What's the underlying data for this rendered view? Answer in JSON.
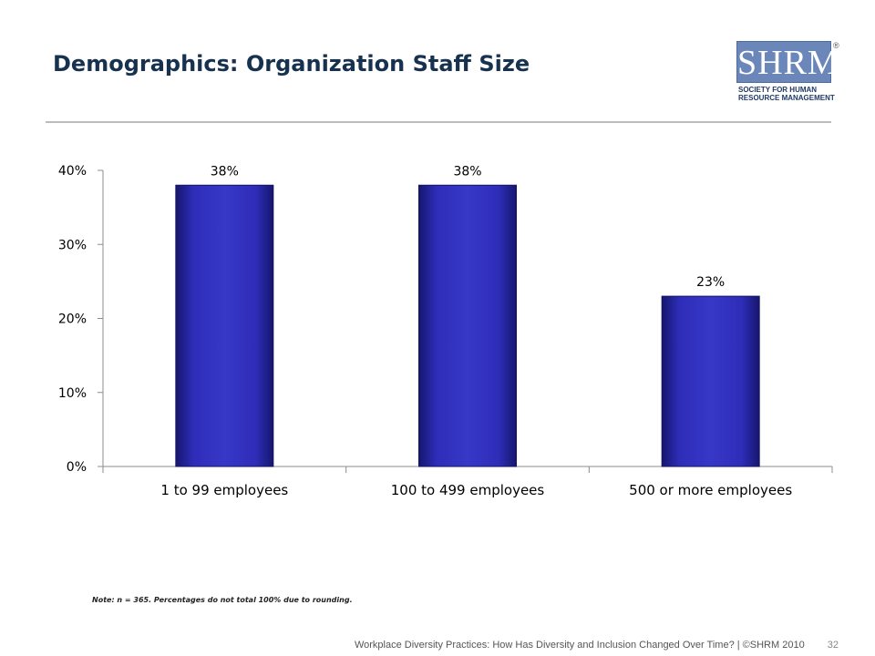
{
  "slide": {
    "title": "Demographics: Organization Staff Size",
    "note": "Note: n = 365. Percentages do not total 100% due to rounding.",
    "footer_text": "Workplace Diversity Practices: How Has Diversity and Inclusion Changed Over Time? | ©SHRM 2010",
    "page_number": "32"
  },
  "logo": {
    "text": "SHRM",
    "registered": "®",
    "line1": "SOCIETY FOR HUMAN",
    "line2": "RESOURCE MANAGEMENT"
  },
  "chart_data": {
    "type": "bar",
    "categories": [
      "1 to 99 employees",
      "100 to 499 employees",
      "500 or more employees"
    ],
    "values": [
      38,
      38,
      23
    ],
    "data_labels": [
      "38%",
      "38%",
      "23%"
    ],
    "ylim": [
      0,
      40
    ],
    "yticks": [
      0,
      10,
      20,
      30,
      40
    ],
    "ytick_labels": [
      "0%",
      "10%",
      "20%",
      "30%",
      "40%"
    ],
    "xlabel": "",
    "ylabel": "",
    "grid": false,
    "legend": "none",
    "bar_color": "#2b2bb0"
  }
}
